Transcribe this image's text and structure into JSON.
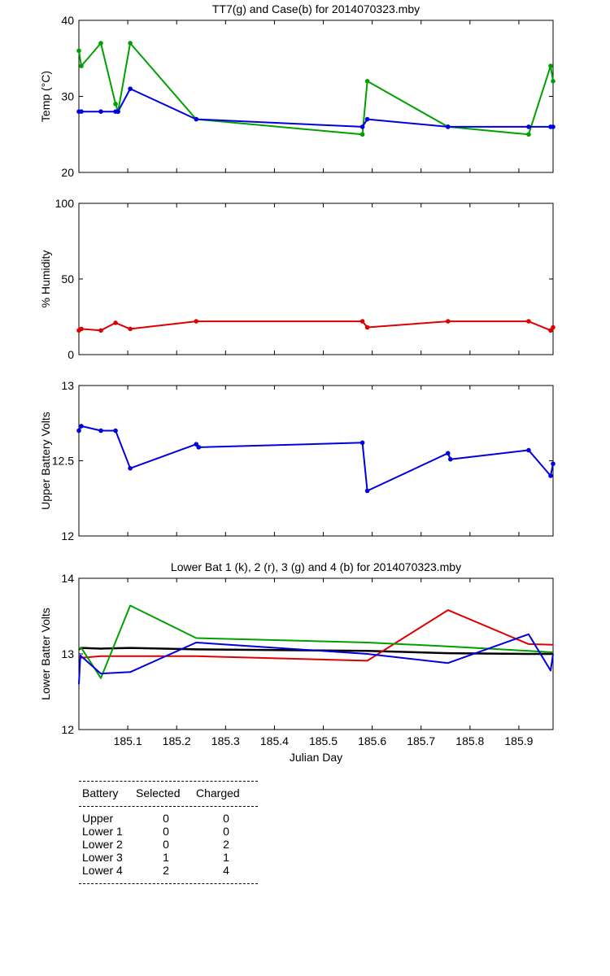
{
  "colors": {
    "green": "#00a000",
    "blue": "#0000dd",
    "red": "#dd0000",
    "black": "#000000"
  },
  "chart_data": [
    {
      "type": "line",
      "title": "TT7(g) and Case(b) for 2014070323.mby",
      "xlabel": "",
      "ylabel": "Temp (°C)",
      "xlim": [
        185.0,
        185.97
      ],
      "ylim": [
        20,
        40
      ],
      "yticks": [
        20,
        30,
        40
      ],
      "series": [
        {
          "color": "#00a000",
          "markers": true,
          "x": [
            185.0,
            185.005,
            185.045,
            185.075,
            185.08,
            185.105,
            185.24,
            185.58,
            185.59,
            185.755,
            185.92,
            185.965,
            185.97
          ],
          "y": [
            36,
            34,
            37,
            29,
            28,
            37,
            27,
            25,
            32,
            26,
            25,
            34,
            32
          ]
        },
        {
          "color": "#0000dd",
          "markers": true,
          "x": [
            185.0,
            185.005,
            185.045,
            185.075,
            185.08,
            185.105,
            185.24,
            185.58,
            185.59,
            185.755,
            185.92,
            185.965,
            185.97
          ],
          "y": [
            28,
            28,
            28,
            28,
            28,
            31,
            27,
            26,
            27,
            26,
            26,
            26,
            26
          ]
        }
      ]
    },
    {
      "type": "line",
      "title": "",
      "xlabel": "",
      "ylabel": "% Humidity",
      "xlim": [
        185.0,
        185.97
      ],
      "ylim": [
        0,
        100
      ],
      "yticks": [
        0,
        50,
        100
      ],
      "series": [
        {
          "color": "#dd0000",
          "markers": true,
          "x": [
            185.0,
            185.005,
            185.045,
            185.075,
            185.105,
            185.24,
            185.58,
            185.59,
            185.755,
            185.92,
            185.965,
            185.97
          ],
          "y": [
            16,
            17,
            16,
            21,
            17,
            22,
            22,
            18,
            22,
            22,
            16,
            18
          ]
        }
      ]
    },
    {
      "type": "line",
      "title": "",
      "xlabel": "",
      "ylabel": "Upper Battery Volts",
      "xlim": [
        185.0,
        185.97
      ],
      "ylim": [
        12,
        13
      ],
      "yticks": [
        12,
        12.5,
        13
      ],
      "yticklabels": [
        "12",
        "12.5",
        "13"
      ],
      "series": [
        {
          "color": "#0000dd",
          "markers": true,
          "x": [
            185.0,
            185.005,
            185.045,
            185.075,
            185.105,
            185.24,
            185.245,
            185.58,
            185.59,
            185.755,
            185.76,
            185.92,
            185.965,
            185.97
          ],
          "y": [
            12.7,
            12.73,
            12.7,
            12.7,
            12.45,
            12.61,
            12.59,
            12.62,
            12.3,
            12.55,
            12.51,
            12.57,
            12.4,
            12.48
          ]
        }
      ]
    },
    {
      "type": "line",
      "title": "Lower Bat 1 (k), 2 (r), 3 (g) and 4 (b) for 2014070323.mby",
      "xlabel": "Julian Day",
      "ylabel": "Lower Batter Volts",
      "xlim": [
        185.0,
        185.97
      ],
      "ylim": [
        12,
        14
      ],
      "yticks": [
        12,
        13,
        14
      ],
      "xticks": [
        185.1,
        185.2,
        185.3,
        185.4,
        185.5,
        185.6,
        185.7,
        185.8,
        185.9
      ],
      "xticklabels": [
        "185.1",
        "185.2",
        "185.3",
        "185.4",
        "185.5",
        "185.6",
        "185.7",
        "185.8",
        "185.9"
      ],
      "series": [
        {
          "color": "#000000",
          "markers": false,
          "x": [
            185.0,
            185.005,
            185.045,
            185.105,
            185.24,
            185.59,
            185.755,
            185.92,
            185.97
          ],
          "y": [
            13.06,
            13.08,
            13.07,
            13.08,
            13.06,
            13.04,
            13.01,
            13.0,
            13.0
          ]
        },
        {
          "color": "#dd0000",
          "markers": false,
          "x": [
            185.0,
            185.005,
            185.045,
            185.105,
            185.24,
            185.59,
            185.755,
            185.92,
            185.97
          ],
          "y": [
            12.95,
            12.95,
            12.97,
            12.97,
            12.97,
            12.91,
            13.58,
            13.13,
            13.12
          ]
        },
        {
          "color": "#00a000",
          "markers": false,
          "x": [
            185.0,
            185.005,
            185.045,
            185.105,
            185.24,
            185.59,
            185.755,
            185.92,
            185.97
          ],
          "y": [
            13.08,
            13.08,
            12.68,
            13.64,
            13.21,
            13.15,
            13.1,
            13.04,
            13.02
          ]
        },
        {
          "color": "#0000dd",
          "markers": false,
          "x": [
            185.0,
            185.003,
            185.045,
            185.105,
            185.24,
            185.59,
            185.755,
            185.92,
            185.965,
            185.97
          ],
          "y": [
            12.6,
            12.98,
            12.74,
            12.76,
            13.15,
            13.0,
            12.88,
            13.26,
            12.78,
            13.0
          ]
        }
      ]
    }
  ],
  "table": {
    "headers": [
      "Battery",
      "Selected",
      "Charged"
    ],
    "rows": [
      [
        "Upper",
        "0",
        "0"
      ],
      [
        "Lower 1",
        "0",
        "0"
      ],
      [
        "Lower 2",
        "0",
        "2"
      ],
      [
        "Lower 3",
        "1",
        "1"
      ],
      [
        "Lower 4",
        "2",
        "4"
      ]
    ]
  }
}
